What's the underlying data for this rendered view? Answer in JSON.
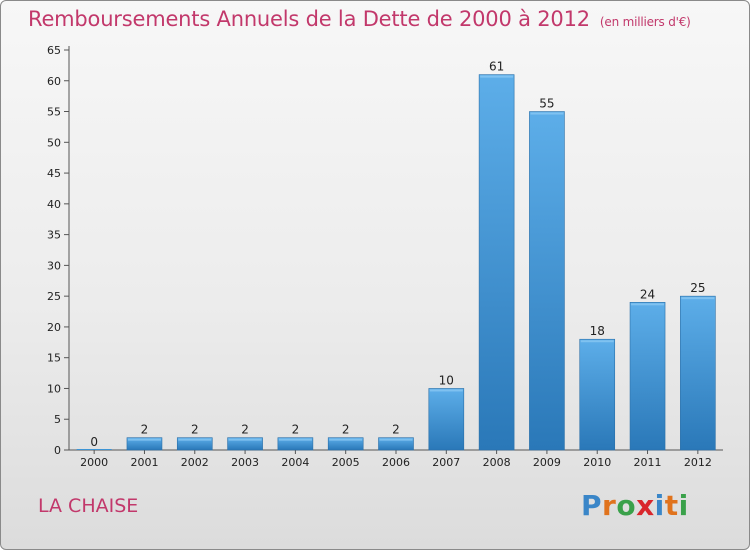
{
  "chart_data": {
    "type": "bar",
    "title": "Remboursements Annuels de la Dette de 2000 à 2012",
    "unit_label": "(en milliers d'€)",
    "categories": [
      "2000",
      "2001",
      "2002",
      "2003",
      "2004",
      "2005",
      "2006",
      "2007",
      "2008",
      "2009",
      "2010",
      "2011",
      "2012"
    ],
    "values": [
      0,
      2,
      2,
      2,
      2,
      2,
      2,
      10,
      61,
      55,
      18,
      24,
      25
    ],
    "data_labels": [
      "0",
      "2",
      "2",
      "2",
      "2",
      "2",
      "2",
      "10",
      "61",
      "55",
      "18",
      "24",
      "25"
    ],
    "ylim": [
      0,
      65
    ],
    "yticks": [
      0,
      5,
      10,
      15,
      20,
      25,
      30,
      35,
      40,
      45,
      50,
      55,
      60,
      65
    ],
    "grid": false,
    "bar_color": "#3d94d4"
  },
  "footer": {
    "commune": "LA CHAISE",
    "logo_letters": [
      {
        "ch": "P",
        "color": "#3a86c8"
      },
      {
        "ch": "r",
        "color": "#e0731d"
      },
      {
        "ch": "o",
        "color": "#3aa14a"
      },
      {
        "ch": "x",
        "color": "#d9262c"
      },
      {
        "ch": "i",
        "color": "#3a86c8"
      },
      {
        "ch": "t",
        "color": "#e0731d"
      },
      {
        "ch": "i",
        "color": "#3aa14a"
      }
    ]
  }
}
